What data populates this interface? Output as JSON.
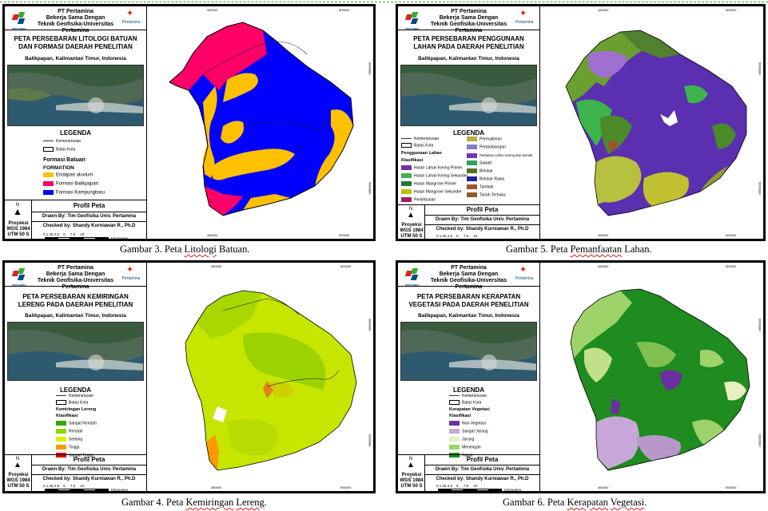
{
  "header": {
    "line1": "PT Pertamina",
    "line2": "Bekerja Sama Dengan",
    "line3": "Teknik Geofisika-Universitas Pertamina",
    "logo_left_text": "PERTAMINA",
    "logo_right_text": "Pertamina"
  },
  "common": {
    "location": "Balikpapan, Kalimantan Timur, Indonesia",
    "legend_title": "LEGENDA",
    "kemenerusan": "Kemenerusan",
    "batas_kota": "Batas Kota",
    "profil_title": "Profil Peta",
    "drawn_by": "Drawn By: Tim Geofisika Univ. Pertamina",
    "checked_by": "Checked by: Shandy Kurniawan R., Ph.D",
    "north": "N",
    "proyeksi": "Proyeksi",
    "datum": "WGS 1984",
    "zone": "UTM 50 S",
    "scale_labels": [
      "0",
      "1.25",
      "2.5",
      "5",
      "7.5",
      "10"
    ],
    "scale_unit": "Kilometers",
    "easting_left": "480000",
    "easting_right": "500000",
    "northing_top": "9860000",
    "northing_bottom": "9850000",
    "colors": {
      "frame": "#000000",
      "caption_underline": "#d02020"
    }
  },
  "maps": [
    {
      "id": "litologi",
      "title_l1": "PETA PERSEBARAN LITOLOGI BATUAN",
      "title_l2": "DAN FORMASI DAERAH PENELITIAN",
      "legend_sub1": "Formasi Batuan",
      "legend_sub2": "FORMATION",
      "classes": [
        {
          "label": "Endapan aluvium",
          "color": "#ffc000"
        },
        {
          "label": "Formasi Balikpapan",
          "color": "#ff0066"
        },
        {
          "label": "Formasi Kampungbaru",
          "color": "#0000ff"
        }
      ],
      "caption_prefix": "Gambar 3. Peta ",
      "caption_u1": "Litologi",
      "caption_u2": "Batuan",
      "caption_suffix": "."
    },
    {
      "id": "lahan",
      "title_l1": "PETA PERSEBARAN PENGGUNAAN",
      "title_l2": "LAHAN PADA DAERAH PENELITIAN",
      "legend_sub1": "Penggunaan Lahan",
      "legend_sub2": "Klasifikasi",
      "classes_left": [
        {
          "label": "Hutan Lahan Kering Primer",
          "color": "#7030a0"
        },
        {
          "label": "Hutan Lahan Kering Sekunder",
          "color": "#3cb44b"
        },
        {
          "label": "Hutan Mangrove Primer",
          "color": "#1f7a3a"
        },
        {
          "label": "Hutan Mangrove Sekunder",
          "color": "#c0c000"
        },
        {
          "label": "Perkebunan",
          "color": "#a02060"
        }
      ],
      "classes_right": [
        {
          "label": "Permukiman",
          "color": "#b0b040"
        },
        {
          "label": "Pertambangan",
          "color": "#8080c0"
        },
        {
          "label": "Pertanian Lahan Kering dan Semak",
          "color": "#7b2fbe"
        },
        {
          "label": "Sawah",
          "color": "#30a060"
        },
        {
          "label": "Belukar",
          "color": "#507020"
        },
        {
          "label": "Belukar Rawa",
          "color": "#2020a0"
        },
        {
          "label": "Tambak",
          "color": "#a05030"
        },
        {
          "label": "Tanah Terbuka",
          "color": "#8b5a2b"
        }
      ],
      "caption_prefix": "Gambar 5. Peta ",
      "caption_u1": "Pemanfaatan",
      "caption_u2": "Lahan",
      "caption_suffix": "."
    },
    {
      "id": "lereng",
      "title_l1": "PETA PERSEBARAN KEMIRINGAN",
      "title_l2": "LERENG PADA DAERAH PENELITIAN",
      "legend_sub1": "Kemiringan Lereng",
      "legend_sub2": "Klasifikasi",
      "classes": [
        {
          "label": "Sangat Rendah",
          "color": "#38a800"
        },
        {
          "label": "Rendah",
          "color": "#8fd400"
        },
        {
          "label": "Sedang",
          "color": "#d9f200"
        },
        {
          "label": "Tinggi",
          "color": "#ff9900"
        },
        {
          "label": "Sangat Tinggi",
          "color": "#e60000"
        }
      ],
      "caption_prefix": "Gambar 4. Peta ",
      "caption_u1": "Kemiringan",
      "caption_u2": "Lereng",
      "caption_suffix": "."
    },
    {
      "id": "vegetasi",
      "title_l1": "PETA PERSEBARAN KERAPATAN",
      "title_l2": "VEGETASI PADA DAERAH PENELITIAN",
      "legend_sub1": "Kerapatan Vegetasi",
      "legend_sub2": "Klasifikasi",
      "classes": [
        {
          "label": "Non-Vegetasi",
          "color": "#6a2fa0"
        },
        {
          "label": "Sangat Jarang",
          "color": "#c8a8d8"
        },
        {
          "label": "Jarang",
          "color": "#e6f0c0"
        },
        {
          "label": "Menengah",
          "color": "#9ed36a"
        },
        {
          "label": "Rapat",
          "color": "#1e8c1e"
        }
      ],
      "caption_prefix": "Gambar 6. Peta ",
      "caption_u1": "Kerapatan",
      "caption_u2": "Vegetasi",
      "caption_suffix": "."
    }
  ]
}
